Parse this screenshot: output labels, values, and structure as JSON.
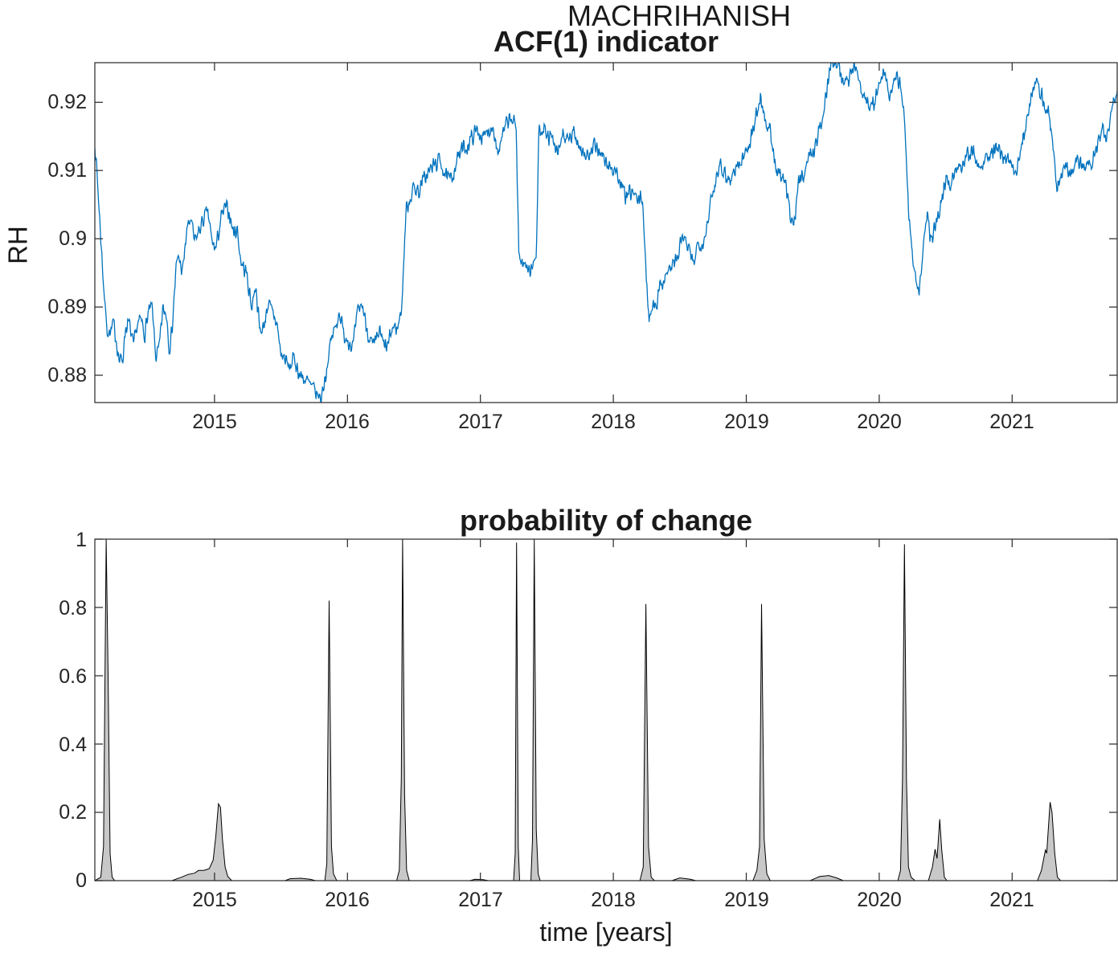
{
  "figure": {
    "background": "#ffffff"
  },
  "chart_data": [
    {
      "type": "line",
      "title": "MACHRIHANISH",
      "subtitle": "ACF(1) indicator",
      "ylabel": "RH",
      "xlabel": "",
      "xlim": [
        2014.1,
        2021.79
      ],
      "ylim": [
        0.876,
        0.9258
      ],
      "grid": false,
      "legend": "none",
      "line_color": "#0072BD",
      "axis_color": "#262626",
      "xticklabels": [
        "2015",
        "2016",
        "2017",
        "2018",
        "2019",
        "2020",
        "2021"
      ],
      "xtick_values": [
        2015,
        2016,
        2017,
        2018,
        2019,
        2020,
        2021
      ],
      "yticklabels": [
        "0.92",
        "0.91",
        "0.9",
        "0.89",
        "0.88"
      ],
      "ytick_values": [
        0.92,
        0.91,
        0.9,
        0.89,
        0.88
      ],
      "series": [
        {
          "name": "ACF(1) indicator of RH",
          "x": [
            2014.1,
            2014.12,
            2014.145,
            2014.17,
            2014.19,
            2014.215,
            2014.24,
            2014.26,
            2014.285,
            2014.31,
            2014.33,
            2014.36,
            2014.39,
            2014.42,
            2014.45,
            2014.475,
            2014.5,
            2014.53,
            2014.56,
            2014.585,
            2014.61,
            2014.64,
            2014.66,
            2014.68,
            2014.71,
            2014.73,
            2014.76,
            2014.79,
            2014.82,
            2014.85,
            2014.88,
            2014.91,
            2014.95,
            2014.98,
            2015.01,
            2015.05,
            2015.08,
            2015.11,
            2015.14,
            2015.17,
            2015.2,
            2015.24,
            2015.28,
            2015.31,
            2015.34,
            2015.37,
            2015.4,
            2015.44,
            2015.47,
            2015.5,
            2015.53,
            2015.56,
            2015.6,
            2015.64,
            2015.68,
            2015.72,
            2015.76,
            2015.8,
            2015.84,
            2015.88,
            2015.91,
            2015.94,
            2015.97,
            2016.0,
            2016.04,
            2016.08,
            2016.11,
            2016.14,
            2016.17,
            2016.2,
            2016.24,
            2016.27,
            2016.3,
            2016.34,
            2016.38,
            2016.41,
            2016.44,
            2016.47,
            2016.5,
            2016.54,
            2016.58,
            2016.62,
            2016.66,
            2016.7,
            2016.74,
            2016.78,
            2016.82,
            2016.86,
            2016.9,
            2016.94,
            2016.98,
            2017.02,
            2017.06,
            2017.1,
            2017.13,
            2017.16,
            2017.2,
            2017.24,
            2017.27,
            2017.29,
            2017.32,
            2017.35,
            2017.38,
            2017.4,
            2017.42,
            2017.44,
            2017.47,
            2017.5,
            2017.54,
            2017.58,
            2017.62,
            2017.66,
            2017.7,
            2017.74,
            2017.78,
            2017.82,
            2017.86,
            2017.9,
            2017.94,
            2017.98,
            2018.02,
            2018.06,
            2018.1,
            2018.14,
            2018.18,
            2018.22,
            2018.25,
            2018.27,
            2018.3,
            2018.33,
            2018.36,
            2018.4,
            2018.44,
            2018.48,
            2018.52,
            2018.56,
            2018.6,
            2018.64,
            2018.68,
            2018.72,
            2018.76,
            2018.8,
            2018.84,
            2018.88,
            2018.92,
            2018.96,
            2019.0,
            2019.04,
            2019.08,
            2019.11,
            2019.14,
            2019.18,
            2019.22,
            2019.26,
            2019.3,
            2019.33,
            2019.36,
            2019.39,
            2019.43,
            2019.47,
            2019.51,
            2019.55,
            2019.58,
            2019.61,
            2019.64,
            2019.68,
            2019.71,
            2019.74,
            2019.77,
            2019.8,
            2019.84,
            2019.88,
            2019.92,
            2019.96,
            2020.0,
            2020.04,
            2020.08,
            2020.12,
            2020.16,
            2020.19,
            2020.22,
            2020.26,
            2020.3,
            2020.33,
            2020.36,
            2020.39,
            2020.42,
            2020.46,
            2020.5,
            2020.54,
            2020.58,
            2020.62,
            2020.66,
            2020.7,
            2020.74,
            2020.78,
            2020.82,
            2020.86,
            2020.9,
            2020.94,
            2020.98,
            2021.02,
            2021.06,
            2021.1,
            2021.14,
            2021.18,
            2021.21,
            2021.24,
            2021.28,
            2021.31,
            2021.34,
            2021.37,
            2021.4,
            2021.44,
            2021.48,
            2021.52,
            2021.56,
            2021.6,
            2021.64,
            2021.68,
            2021.71,
            2021.74,
            2021.79
          ],
          "y": [
            0.914,
            0.9085,
            0.9,
            0.892,
            0.887,
            0.886,
            0.8875,
            0.8855,
            0.882,
            0.8825,
            0.887,
            0.8875,
            0.884,
            0.8875,
            0.888,
            0.886,
            0.889,
            0.89,
            0.8825,
            0.884,
            0.8895,
            0.889,
            0.884,
            0.8865,
            0.8955,
            0.8975,
            0.895,
            0.901,
            0.903,
            0.8995,
            0.901,
            0.9025,
            0.904,
            0.8995,
            0.8985,
            0.903,
            0.9045,
            0.904,
            0.901,
            0.9015,
            0.8965,
            0.895,
            0.89,
            0.8935,
            0.8865,
            0.887,
            0.8905,
            0.889,
            0.8875,
            0.883,
            0.8825,
            0.881,
            0.8825,
            0.88,
            0.8795,
            0.8785,
            0.8775,
            0.8765,
            0.8805,
            0.8855,
            0.887,
            0.8895,
            0.886,
            0.8855,
            0.884,
            0.8895,
            0.8905,
            0.8875,
            0.885,
            0.884,
            0.8865,
            0.8845,
            0.884,
            0.887,
            0.887,
            0.8905,
            0.904,
            0.906,
            0.9075,
            0.907,
            0.909,
            0.91,
            0.911,
            0.9115,
            0.909,
            0.9085,
            0.9115,
            0.913,
            0.9135,
            0.915,
            0.916,
            0.9145,
            0.916,
            0.9165,
            0.9125,
            0.9145,
            0.917,
            0.9175,
            0.916,
            0.8975,
            0.896,
            0.8965,
            0.895,
            0.897,
            0.8965,
            0.916,
            0.9165,
            0.915,
            0.9145,
            0.912,
            0.9155,
            0.914,
            0.9155,
            0.914,
            0.9125,
            0.912,
            0.9135,
            0.913,
            0.911,
            0.9105,
            0.91,
            0.9075,
            0.906,
            0.907,
            0.9055,
            0.906,
            0.893,
            0.8885,
            0.8905,
            0.891,
            0.8935,
            0.895,
            0.896,
            0.897,
            0.9005,
            0.8985,
            0.8965,
            0.8995,
            0.8995,
            0.904,
            0.9075,
            0.9115,
            0.9095,
            0.9085,
            0.9105,
            0.911,
            0.913,
            0.915,
            0.9185,
            0.921,
            0.9175,
            0.9155,
            0.9105,
            0.909,
            0.9075,
            0.904,
            0.902,
            0.908,
            0.9095,
            0.912,
            0.913,
            0.916,
            0.918,
            0.9225,
            0.9262,
            0.9262,
            0.9245,
            0.9225,
            0.9235,
            0.9255,
            0.924,
            0.921,
            0.92,
            0.9195,
            0.9225,
            0.9245,
            0.9205,
            0.9235,
            0.923,
            0.918,
            0.904,
            0.896,
            0.891,
            0.899,
            0.9035,
            0.8995,
            0.902,
            0.905,
            0.9085,
            0.908,
            0.9105,
            0.911,
            0.9125,
            0.913,
            0.911,
            0.9115,
            0.912,
            0.913,
            0.9125,
            0.912,
            0.911,
            0.9095,
            0.913,
            0.916,
            0.92,
            0.924,
            0.922,
            0.9195,
            0.918,
            0.914,
            0.9065,
            0.9095,
            0.911,
            0.909,
            0.912,
            0.911,
            0.9105,
            0.9115,
            0.914,
            0.9165,
            0.915,
            0.918,
            0.9215
          ]
        }
      ]
    },
    {
      "type": "area",
      "title": "probability of change",
      "xlabel": "time [years]",
      "ylabel": "",
      "xlim": [
        2014.1,
        2021.79
      ],
      "ylim": [
        0,
        1
      ],
      "grid": false,
      "legend": "none",
      "fill_color": "#c8c8c8",
      "edge_color": "#000000",
      "axis_color": "#262626",
      "xticklabels": [
        "2015",
        "2016",
        "2017",
        "2018",
        "2019",
        "2020",
        "2021"
      ],
      "xtick_values": [
        2015,
        2016,
        2017,
        2018,
        2019,
        2020,
        2021
      ],
      "yticklabels": [
        "1",
        "0.8",
        "0.6",
        "0.4",
        "0.2",
        "0"
      ],
      "ytick_values": [
        1,
        0.8,
        0.6,
        0.4,
        0.2,
        0
      ],
      "points": {
        "x": [
          2014.1,
          2014.145,
          2014.165,
          2014.185,
          2014.2,
          2014.215,
          2014.23,
          2014.25,
          2014.68,
          2014.75,
          2014.8,
          2014.85,
          2014.88,
          2014.92,
          2014.96,
          2014.99,
          2015.01,
          2015.03,
          2015.045,
          2015.06,
          2015.08,
          2015.1,
          2015.13,
          2015.53,
          2015.57,
          2015.65,
          2015.72,
          2015.76,
          2015.83,
          2015.845,
          2015.862,
          2015.88,
          2015.895,
          2015.92,
          2016.37,
          2016.39,
          2016.405,
          2016.415,
          2016.43,
          2016.445,
          2016.465,
          2016.92,
          2016.96,
          2017.02,
          2017.06,
          2017.25,
          2017.262,
          2017.272,
          2017.285,
          2017.295,
          2017.38,
          2017.392,
          2017.405,
          2017.42,
          2017.435,
          2017.45,
          2018.2,
          2018.225,
          2018.245,
          2018.265,
          2018.285,
          2018.31,
          2018.44,
          2018.5,
          2018.58,
          2018.62,
          2019.05,
          2019.08,
          2019.1,
          2019.115,
          2019.135,
          2019.155,
          2019.18,
          2019.48,
          2019.55,
          2019.62,
          2019.68,
          2019.73,
          2020.14,
          2020.16,
          2020.175,
          2020.19,
          2020.205,
          2020.22,
          2020.24,
          2020.27,
          2020.37,
          2020.4,
          2020.42,
          2020.435,
          2020.455,
          2020.47,
          2020.49,
          2020.51,
          2021.19,
          2021.22,
          2021.25,
          2021.26,
          2021.285,
          2021.3,
          2021.32,
          2021.34,
          2021.365,
          2021.79
        ],
        "y": [
          0.0,
          0.01,
          0.1,
          1.0,
          0.6,
          0.08,
          0.01,
          0.0,
          0.0,
          0.01,
          0.018,
          0.022,
          0.03,
          0.03,
          0.035,
          0.06,
          0.13,
          0.225,
          0.215,
          0.12,
          0.04,
          0.012,
          0.0,
          0.0,
          0.006,
          0.007,
          0.004,
          0.0,
          0.0,
          0.05,
          0.82,
          0.1,
          0.02,
          0.0,
          0.0,
          0.03,
          0.3,
          1.0,
          0.25,
          0.03,
          0.0,
          0.0,
          0.004,
          0.003,
          0.0,
          0.0,
          0.08,
          0.99,
          0.1,
          0.0,
          0.0,
          0.12,
          1.0,
          0.15,
          0.02,
          0.0,
          0.0,
          0.04,
          0.81,
          0.1,
          0.01,
          0.0,
          0.0,
          0.008,
          0.004,
          0.0,
          0.0,
          0.03,
          0.1,
          0.81,
          0.12,
          0.02,
          0.0,
          0.0,
          0.012,
          0.015,
          0.008,
          0.0,
          0.0,
          0.03,
          0.3,
          0.985,
          0.3,
          0.04,
          0.01,
          0.0,
          0.0,
          0.04,
          0.092,
          0.065,
          0.18,
          0.09,
          0.01,
          0.0,
          0.0,
          0.03,
          0.09,
          0.08,
          0.23,
          0.2,
          0.08,
          0.01,
          0.0,
          0.0
        ]
      }
    }
  ]
}
